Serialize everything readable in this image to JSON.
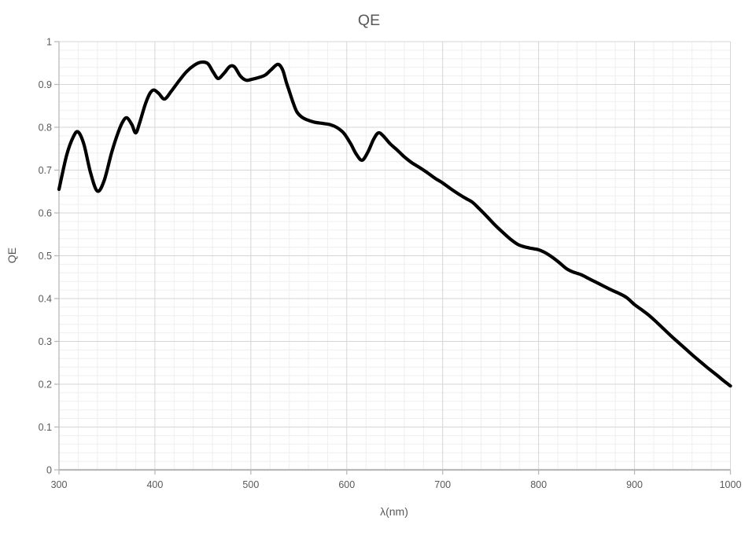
{
  "chart_data": {
    "type": "line",
    "title": "QE",
    "xlabel": "λ(nm)",
    "ylabel": "QE",
    "xlim": [
      300,
      1000
    ],
    "ylim": [
      0,
      1
    ],
    "x_major_ticks": [
      300,
      400,
      500,
      600,
      700,
      800,
      900,
      1000
    ],
    "x_tick_labels": [
      "300",
      "400",
      "500",
      "600",
      "700",
      "800",
      "900",
      "1000"
    ],
    "y_major_ticks": [
      0,
      0.1,
      0.2,
      0.3,
      0.4,
      0.5,
      0.6,
      0.7,
      0.8,
      0.9,
      1
    ],
    "y_tick_labels": [
      "0",
      "0.1",
      "0.2",
      "0.3",
      "0.4",
      "0.5",
      "0.6",
      "0.7",
      "0.8",
      "0.9",
      "1"
    ],
    "x_minor_step": 20,
    "y_minor_step": 0.02,
    "grid": {
      "major": true,
      "minor": true
    },
    "legend_position": "none",
    "line_width": 4.2,
    "colors": {
      "line": "#000000",
      "text": "#595959",
      "axis": "#b9b9b9",
      "grid_major": "#d6d6d6",
      "grid_minor": "#efefef",
      "background": "#ffffff"
    },
    "series": [
      {
        "name": "QE",
        "points": [
          [
            300,
            0.655
          ],
          [
            308,
            0.735
          ],
          [
            315,
            0.778
          ],
          [
            320,
            0.789
          ],
          [
            326,
            0.76
          ],
          [
            333,
            0.693
          ],
          [
            340,
            0.651
          ],
          [
            347,
            0.675
          ],
          [
            355,
            0.742
          ],
          [
            362,
            0.79
          ],
          [
            367,
            0.815
          ],
          [
            371,
            0.822
          ],
          [
            376,
            0.806
          ],
          [
            380,
            0.787
          ],
          [
            384,
            0.81
          ],
          [
            390,
            0.854
          ],
          [
            395,
            0.88
          ],
          [
            399,
            0.887
          ],
          [
            404,
            0.879
          ],
          [
            410,
            0.866
          ],
          [
            417,
            0.884
          ],
          [
            425,
            0.908
          ],
          [
            433,
            0.93
          ],
          [
            441,
            0.945
          ],
          [
            448,
            0.952
          ],
          [
            455,
            0.949
          ],
          [
            461,
            0.928
          ],
          [
            466,
            0.914
          ],
          [
            472,
            0.926
          ],
          [
            478,
            0.942
          ],
          [
            483,
            0.941
          ],
          [
            489,
            0.92
          ],
          [
            495,
            0.91
          ],
          [
            501,
            0.912
          ],
          [
            508,
            0.916
          ],
          [
            515,
            0.922
          ],
          [
            521,
            0.934
          ],
          [
            528,
            0.947
          ],
          [
            533,
            0.935
          ],
          [
            537,
            0.905
          ],
          [
            540,
            0.885
          ],
          [
            544,
            0.858
          ],
          [
            548,
            0.836
          ],
          [
            553,
            0.824
          ],
          [
            558,
            0.818
          ],
          [
            566,
            0.812
          ],
          [
            575,
            0.809
          ],
          [
            583,
            0.806
          ],
          [
            590,
            0.799
          ],
          [
            597,
            0.786
          ],
          [
            604,
            0.762
          ],
          [
            610,
            0.737
          ],
          [
            616,
            0.723
          ],
          [
            622,
            0.742
          ],
          [
            628,
            0.772
          ],
          [
            633,
            0.787
          ],
          [
            638,
            0.78
          ],
          [
            645,
            0.762
          ],
          [
            652,
            0.748
          ],
          [
            660,
            0.731
          ],
          [
            668,
            0.717
          ],
          [
            676,
            0.706
          ],
          [
            684,
            0.694
          ],
          [
            692,
            0.681
          ],
          [
            700,
            0.67
          ],
          [
            708,
            0.657
          ],
          [
            716,
            0.645
          ],
          [
            724,
            0.634
          ],
          [
            731,
            0.625
          ],
          [
            738,
            0.61
          ],
          [
            746,
            0.592
          ],
          [
            754,
            0.573
          ],
          [
            762,
            0.556
          ],
          [
            770,
            0.54
          ],
          [
            778,
            0.527
          ],
          [
            785,
            0.521
          ],
          [
            793,
            0.517
          ],
          [
            800,
            0.514
          ],
          [
            807,
            0.507
          ],
          [
            814,
            0.497
          ],
          [
            821,
            0.485
          ],
          [
            829,
            0.47
          ],
          [
            836,
            0.462
          ],
          [
            844,
            0.456
          ],
          [
            852,
            0.447
          ],
          [
            860,
            0.438
          ],
          [
            868,
            0.429
          ],
          [
            876,
            0.42
          ],
          [
            884,
            0.412
          ],
          [
            892,
            0.402
          ],
          [
            900,
            0.386
          ],
          [
            908,
            0.373
          ],
          [
            915,
            0.361
          ],
          [
            922,
            0.347
          ],
          [
            930,
            0.33
          ],
          [
            938,
            0.313
          ],
          [
            946,
            0.297
          ],
          [
            954,
            0.281
          ],
          [
            962,
            0.265
          ],
          [
            970,
            0.25
          ],
          [
            978,
            0.235
          ],
          [
            986,
            0.221
          ],
          [
            993,
            0.208
          ],
          [
            1000,
            0.196
          ]
        ]
      }
    ]
  }
}
